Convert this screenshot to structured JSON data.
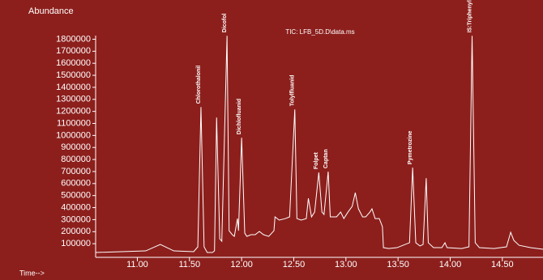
{
  "chart_data": {
    "type": "line",
    "title": "TIC: LFB_5D.D\\data.ms",
    "y_label": "Abundance",
    "x_label": "Time-->",
    "color": "#ffffff",
    "x": [
      10.6,
      11.08,
      11.22,
      11.35,
      11.54,
      11.58,
      11.61,
      11.64,
      11.67,
      11.72,
      11.74,
      11.76,
      11.79,
      11.81,
      11.86,
      11.88,
      11.91,
      11.93,
      11.96,
      11.97,
      12.0,
      12.03,
      12.05,
      12.09,
      12.13,
      12.17,
      12.21,
      12.26,
      12.31,
      12.32,
      12.36,
      12.42,
      12.46,
      12.51,
      12.53,
      12.57,
      12.62,
      12.64,
      12.67,
      12.7,
      12.74,
      12.77,
      12.79,
      12.83,
      12.85,
      12.91,
      12.95,
      12.98,
      13.02,
      13.06,
      13.09,
      13.12,
      13.16,
      13.19,
      13.23,
      13.25,
      13.28,
      13.32,
      13.35,
      13.36,
      13.41,
      13.49,
      13.61,
      13.64,
      13.67,
      13.71,
      13.74,
      13.77,
      13.79,
      13.84,
      13.92,
      13.95,
      13.97,
      14.11,
      14.18,
      14.21,
      14.24,
      14.28,
      14.42,
      14.54,
      14.58,
      14.61,
      14.66,
      14.77,
      14.89
    ],
    "values": [
      27000,
      40000,
      94000,
      40000,
      34000,
      74000,
      1236000,
      74000,
      27000,
      27000,
      40000,
      1149000,
      141000,
      121000,
      1828000,
      208000,
      175000,
      161000,
      309000,
      208000,
      981000,
      188000,
      161000,
      175000,
      175000,
      202000,
      175000,
      161000,
      208000,
      323000,
      296000,
      309000,
      323000,
      1216000,
      309000,
      296000,
      309000,
      477000,
      323000,
      363000,
      692000,
      363000,
      343000,
      699000,
      323000,
      323000,
      363000,
      309000,
      363000,
      410000,
      524000,
      390000,
      323000,
      323000,
      363000,
      390000,
      309000,
      309000,
      242000,
      67000,
      60000,
      67000,
      108000,
      732000,
      108000,
      81000,
      94000,
      645000,
      108000,
      67000,
      67000,
      108000,
      67000,
      60000,
      74000,
      1828000,
      108000,
      67000,
      60000,
      74000,
      195000,
      128000,
      87000,
      67000,
      54000
    ],
    "xlim": [
      10.6,
      14.89
    ],
    "ylim": [
      0,
      1830000
    ],
    "xticks": [
      {
        "value": 11,
        "label": "11.00"
      },
      {
        "value": 11.5,
        "label": "11.50"
      },
      {
        "value": 12,
        "label": "12.00"
      },
      {
        "value": 12.5,
        "label": "12.50"
      },
      {
        "value": 13,
        "label": "13.00"
      },
      {
        "value": 13.5,
        "label": "13.50"
      },
      {
        "value": 14,
        "label": "14.00"
      },
      {
        "value": 14.5,
        "label": "14.50"
      }
    ],
    "yticks": [
      100000,
      200000,
      300000,
      400000,
      500000,
      600000,
      700000,
      800000,
      900000,
      1000000,
      1100000,
      1200000,
      1300000,
      1400000,
      1500000,
      1600000,
      1700000,
      1800000
    ],
    "annotations": [
      {
        "label": "Chlorothalonil",
        "x": 11.61
      },
      {
        "label": "Dicofol",
        "x": 11.86
      },
      {
        "label": "Dichlofluanid",
        "x": 12.0
      },
      {
        "label": "Tolylfluanid",
        "x": 12.51
      },
      {
        "label": "Folpet",
        "x": 12.74
      },
      {
        "label": "Captan",
        "x": 12.83
      },
      {
        "label": "Pymetrozine",
        "x": 13.64
      },
      {
        "label": "IS:Triphenyl phosphate",
        "x": 14.21
      }
    ]
  }
}
